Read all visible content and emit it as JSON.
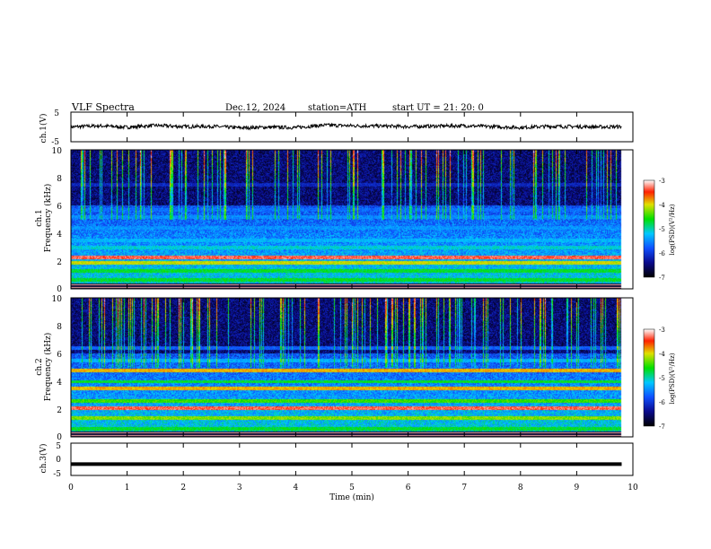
{
  "header": {
    "title": "VLF  Spectra",
    "date": "Dec.12, 2024",
    "station": "station=ATH",
    "start": "start  UT  =    21: 20: 0"
  },
  "colors": {
    "trace": "#000000",
    "colormap": [
      "#000000",
      "#0a0a8c",
      "#1050ff",
      "#00c8ff",
      "#00e000",
      "#e0e000",
      "#ff2000",
      "#ffffff"
    ]
  },
  "chart_data": [
    {
      "type": "line",
      "panel": "ch1-waveform",
      "ylabel": "ch.1(V)",
      "ylim": [
        -5,
        5
      ],
      "yticks": [
        "5",
        "-5"
      ],
      "xlim": [
        0,
        10
      ],
      "x": [
        0,
        0.5,
        1.0,
        1.5,
        2.0,
        2.5,
        3.0,
        3.5,
        4.0,
        4.5,
        5.0,
        5.5,
        6.0,
        6.5,
        7.0,
        7.5,
        8.0,
        8.5,
        9.0,
        9.5,
        9.8
      ],
      "y": [
        0.0,
        0.4,
        -0.1,
        0.5,
        0.1,
        0.2,
        -0.3,
        -0.1,
        -0.2,
        0.6,
        0.4,
        0.3,
        0.1,
        0.3,
        0.4,
        0.1,
        -0.2,
        0.2,
        0.1,
        0.0,
        0.1
      ]
    },
    {
      "type": "heatmap",
      "panel": "ch1-spectrogram",
      "ylabel_top": "ch.1",
      "ylabel": "Frequency  (kHz)",
      "ylim": [
        0,
        10
      ],
      "yticks": [
        "10",
        "8",
        "6",
        "4",
        "2",
        "0"
      ],
      "xlim": [
        0,
        10
      ],
      "data_end_min": 9.8,
      "bands_khz": [
        {
          "freq": 0.7,
          "level": 0.55
        },
        {
          "freq": 1.3,
          "level": 0.55
        },
        {
          "freq": 1.9,
          "level": 0.7
        },
        {
          "freq": 2.3,
          "level": 0.9
        },
        {
          "freq": 3.0,
          "level": 0.45
        },
        {
          "freq": 3.5,
          "level": 0.4
        },
        {
          "freq": 4.4,
          "level": 0.35
        },
        {
          "freq": 5.2,
          "level": 0.35
        },
        {
          "freq": 5.7,
          "level": 0.3
        },
        {
          "freq": 7.5,
          "level": 0.2
        }
      ],
      "colorbar": {
        "label": "log(PSD)(V²/Hz)",
        "ticks": [
          "-3",
          "-4",
          "-5",
          "-6",
          "-7"
        ]
      }
    },
    {
      "type": "heatmap",
      "panel": "ch2-spectrogram",
      "ylabel_top": "ch.2",
      "ylabel": "Frequency  (kHz)",
      "ylim": [
        0,
        10
      ],
      "yticks": [
        "10",
        "8",
        "6",
        "4",
        "2",
        "0"
      ],
      "xlim": [
        0,
        10
      ],
      "data_end_min": 9.8,
      "bands_khz": [
        {
          "freq": 0.6,
          "level": 0.55
        },
        {
          "freq": 1.4,
          "level": 0.65
        },
        {
          "freq": 2.1,
          "level": 0.9
        },
        {
          "freq": 2.6,
          "level": 0.6
        },
        {
          "freq": 3.5,
          "level": 0.75
        },
        {
          "freq": 4.0,
          "level": 0.55
        },
        {
          "freq": 4.8,
          "level": 0.75
        },
        {
          "freq": 5.5,
          "level": 0.4
        },
        {
          "freq": 6.4,
          "level": 0.3
        }
      ],
      "colorbar": {
        "label": "log(PSD)(V²/Hz)",
        "ticks": [
          "-3",
          "-4",
          "-5",
          "-6",
          "-7"
        ]
      }
    },
    {
      "type": "line",
      "panel": "ch3-waveform",
      "ylabel": "ch.3(V)",
      "ylim": [
        -5,
        5
      ],
      "yticks": [
        "5",
        "0",
        "-5"
      ],
      "xlim": [
        0,
        10
      ],
      "x": [
        0,
        9.8
      ],
      "y": [
        -1.5,
        -1.5
      ]
    }
  ],
  "xaxis": {
    "label": "Time  (min)",
    "ticks": [
      "0",
      "1",
      "2",
      "3",
      "4",
      "5",
      "6",
      "7",
      "8",
      "9",
      "10"
    ]
  }
}
